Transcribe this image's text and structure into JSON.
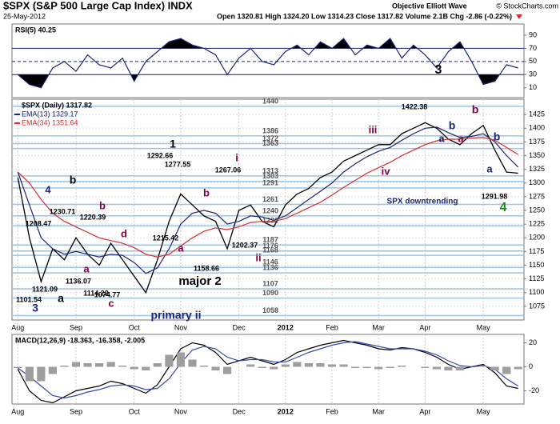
{
  "header": {
    "title": "$SPX (S&P 500 Large Cap Index) INDX",
    "date": "25-May-2012",
    "quote": "Open 1320.81 High 1324.20 Low 1314.23 Close 1317.82 Volume 2.1B Chg -2.86 (-0.22%)",
    "author": "Objective Elliott Wave",
    "source": "© StockCharts.com"
  },
  "chart_data": [
    {
      "type": "line",
      "title": "RSI(5) 40.25",
      "ylim": [
        -5,
        107
      ],
      "yticks": [
        10,
        30,
        50,
        70,
        90
      ],
      "reference_lines": [
        70,
        50,
        30
      ],
      "overbought": 70,
      "oversold": 30,
      "series": [
        {
          "name": "RSI(5)",
          "color": "#1a237e",
          "values": [
            30,
            15,
            10,
            40,
            50,
            35,
            60,
            45,
            40,
            55,
            20,
            50,
            65,
            80,
            85,
            75,
            70,
            60,
            30,
            55,
            70,
            50,
            45,
            65,
            75,
            60,
            80,
            70,
            85,
            60,
            75,
            70,
            85,
            55,
            75,
            60,
            40,
            65,
            80,
            50,
            15,
            20,
            45,
            40
          ]
        }
      ]
    },
    {
      "type": "line",
      "title": "$SPX (Daily) 1317.82",
      "ylim": [
        1050,
        1453
      ],
      "yticks": [
        1075,
        1100,
        1125,
        1150,
        1175,
        1200,
        1225,
        1250,
        1275,
        1300,
        1325,
        1350,
        1375,
        1400,
        1425
      ],
      "grid": true,
      "categories": [
        "Aug",
        null,
        null,
        null,
        null,
        "Sep",
        null,
        null,
        null,
        null,
        "Oct",
        null,
        null,
        null,
        "Nov",
        null,
        null,
        null,
        null,
        "Dec",
        null,
        null,
        null,
        "2012",
        null,
        null,
        null,
        "Feb",
        null,
        null,
        null,
        "Mar",
        null,
        null,
        null,
        "Apr",
        null,
        null,
        null,
        null,
        "May",
        null,
        null,
        null
      ],
      "levels": [
        1440,
        1386,
        1372,
        1363,
        1313,
        1303,
        1291,
        1261,
        1240,
        1222,
        1187,
        1176,
        1168,
        1146,
        1136,
        1107,
        1090,
        1058
      ],
      "series": [
        {
          "name": "$SPX (Daily) 1317.82",
          "color": "#000000",
          "values": [
            1310,
            1200,
            1120,
            1180,
            1160,
            1200,
            1170,
            1150,
            1190,
            1160,
            1130,
            1100,
            1160,
            1230,
            1280,
            1260,
            1240,
            1230,
            1180,
            1250,
            1260,
            1230,
            1220,
            1260,
            1280,
            1290,
            1310,
            1320,
            1340,
            1350,
            1360,
            1370,
            1370,
            1390,
            1400,
            1410,
            1400,
            1380,
            1370,
            1390,
            1405,
            1360,
            1320,
            1318
          ]
        },
        {
          "name": "EMA(13) 1329.17",
          "color": "#1a237e",
          "values": [
            1320,
            1260,
            1200,
            1180,
            1170,
            1175,
            1170,
            1165,
            1170,
            1168,
            1155,
            1135,
            1145,
            1180,
            1225,
            1245,
            1250,
            1245,
            1225,
            1230,
            1240,
            1238,
            1232,
            1240,
            1255,
            1270,
            1285,
            1300,
            1320,
            1335,
            1348,
            1358,
            1365,
            1378,
            1390,
            1400,
            1402,
            1392,
            1383,
            1385,
            1390,
            1375,
            1350,
            1329
          ]
        },
        {
          "name": "EMA(34) 1351.64",
          "color": "#d32f2f",
          "values": [
            1320,
            1300,
            1270,
            1245,
            1230,
            1220,
            1210,
            1200,
            1195,
            1190,
            1182,
            1170,
            1165,
            1170,
            1185,
            1200,
            1212,
            1218,
            1215,
            1220,
            1228,
            1230,
            1230,
            1235,
            1245,
            1255,
            1265,
            1278,
            1292,
            1305,
            1318,
            1328,
            1338,
            1350,
            1360,
            1370,
            1377,
            1380,
            1380,
            1382,
            1383,
            1378,
            1365,
            1352
          ]
        }
      ],
      "annotations": [
        {
          "text": "3",
          "color": "#000000"
        },
        {
          "text": "1",
          "color": "#000000"
        },
        {
          "text": "i",
          "color": "#800040"
        },
        {
          "text": "iii",
          "color": "#800040"
        },
        {
          "text": "iv",
          "color": "#800040"
        },
        {
          "text": "b",
          "color": "#800040"
        },
        {
          "text": "b",
          "color": "#1a237e"
        },
        {
          "text": "b",
          "color": "#1a237e"
        },
        {
          "text": "a",
          "color": "#1a237e"
        },
        {
          "text": "a",
          "color": "#800040"
        },
        {
          "text": "a",
          "color": "#1a237e"
        },
        {
          "text": "4",
          "color": "#1a8a1a"
        },
        {
          "text": "b",
          "color": "#000000"
        },
        {
          "text": "b",
          "color": "#800040"
        },
        {
          "text": "b",
          "color": "#800040"
        },
        {
          "text": "4",
          "color": "#1a237e"
        },
        {
          "text": "d",
          "color": "#800040"
        },
        {
          "text": "a",
          "color": "#800040"
        },
        {
          "text": "ii",
          "color": "#800040"
        },
        {
          "text": "major 2",
          "color": "#000000"
        },
        {
          "text": "a",
          "color": "#000000"
        },
        {
          "text": "a",
          "color": "#800040"
        },
        {
          "text": "c",
          "color": "#800040"
        },
        {
          "text": "3",
          "color": "#1a237e"
        },
        {
          "text": "primary ii",
          "color": "#1a237e"
        },
        {
          "text": "1422.38",
          "color": "#000000"
        },
        {
          "text": "1292.66",
          "color": "#000000"
        },
        {
          "text": "1277.55",
          "color": "#000000"
        },
        {
          "text": "1267.06",
          "color": "#000000"
        },
        {
          "text": "1230.71",
          "color": "#000000"
        },
        {
          "text": "1220.39",
          "color": "#000000"
        },
        {
          "text": "1208.47",
          "color": "#000000"
        },
        {
          "text": "1215.42",
          "color": "#000000"
        },
        {
          "text": "1202.37",
          "color": "#000000"
        },
        {
          "text": "1158.66",
          "color": "#000000"
        },
        {
          "text": "1136.07",
          "color": "#000000"
        },
        {
          "text": "1121.09",
          "color": "#000000"
        },
        {
          "text": "1114.22",
          "color": "#000000"
        },
        {
          "text": "1101.54",
          "color": "#000000"
        },
        {
          "text": "1074.77",
          "color": "#000000"
        },
        {
          "text": "1291.98",
          "color": "#000000"
        },
        {
          "text": "SPX downtrending",
          "color": "#1a237e"
        }
      ]
    },
    {
      "type": "line",
      "title": "MACD(12,26,9) -18.363, -16.358, -2.005",
      "ylim": [
        -31,
        27
      ],
      "yticks": [
        -20,
        0,
        20
      ],
      "categories": [
        "Aug",
        null,
        null,
        null,
        null,
        "Sep",
        null,
        null,
        null,
        null,
        "Oct",
        null,
        null,
        null,
        "Nov",
        null,
        null,
        null,
        null,
        "Dec",
        null,
        null,
        null,
        "2012",
        null,
        null,
        null,
        "Feb",
        null,
        null,
        null,
        "Mar",
        null,
        null,
        null,
        "Apr",
        null,
        null,
        null,
        null,
        "May",
        null,
        null,
        null
      ],
      "series": [
        {
          "name": "MACD",
          "color": "#000000",
          "values": [
            -2,
            -20,
            -28,
            -30,
            -25,
            -20,
            -18,
            -16,
            -12,
            -14,
            -18,
            -22,
            -15,
            0,
            15,
            20,
            18,
            12,
            2,
            5,
            8,
            5,
            2,
            6,
            12,
            15,
            18,
            20,
            22,
            20,
            18,
            15,
            14,
            16,
            15,
            12,
            8,
            2,
            -2,
            0,
            2,
            -5,
            -16,
            -18
          ]
        },
        {
          "name": "Signal",
          "color": "#3949ab",
          "values": [
            -1,
            -8,
            -16,
            -24,
            -26,
            -24,
            -21,
            -19,
            -16,
            -15,
            -16,
            -19,
            -18,
            -10,
            3,
            14,
            17,
            15,
            8,
            5,
            6,
            6,
            4,
            4,
            8,
            12,
            15,
            18,
            20,
            21,
            19,
            17,
            15,
            15,
            15,
            13,
            10,
            5,
            1,
            0,
            1,
            -2,
            -10,
            -16
          ]
        },
        {
          "name": "Histogram",
          "color": "#9e9e9e",
          "type": "bar",
          "values": [
            -1,
            -12,
            -12,
            -6,
            1,
            4,
            3,
            3,
            4,
            1,
            -2,
            -3,
            3,
            10,
            12,
            6,
            1,
            -3,
            -6,
            0,
            2,
            -1,
            -2,
            2,
            4,
            3,
            3,
            2,
            2,
            -1,
            -1,
            -2,
            -1,
            1,
            0,
            -1,
            -2,
            -3,
            -3,
            0,
            1,
            -3,
            -6,
            -2
          ]
        }
      ]
    }
  ]
}
